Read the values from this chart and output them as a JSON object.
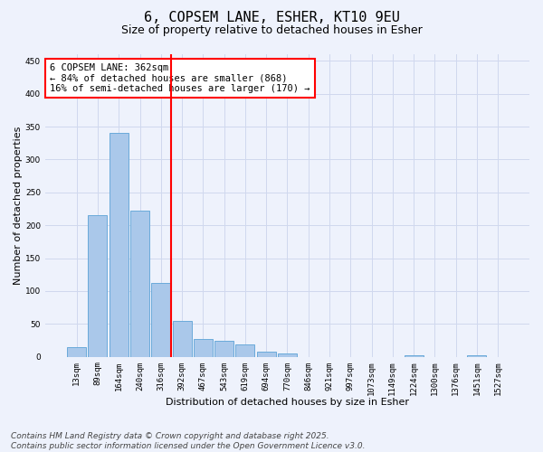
{
  "title": "6, COPSEM LANE, ESHER, KT10 9EU",
  "subtitle": "Size of property relative to detached houses in Esher",
  "xlabel": "Distribution of detached houses by size in Esher",
  "ylabel": "Number of detached properties",
  "categories": [
    "13sqm",
    "89sqm",
    "164sqm",
    "240sqm",
    "316sqm",
    "392sqm",
    "467sqm",
    "543sqm",
    "619sqm",
    "694sqm",
    "770sqm",
    "846sqm",
    "921sqm",
    "997sqm",
    "1073sqm",
    "1149sqm",
    "1224sqm",
    "1300sqm",
    "1376sqm",
    "1451sqm",
    "1527sqm"
  ],
  "values": [
    15,
    216,
    340,
    222,
    112,
    55,
    27,
    25,
    19,
    8,
    5,
    0,
    0,
    0,
    0,
    0,
    2,
    0,
    0,
    2,
    0
  ],
  "bar_color": "#aac8ea",
  "bar_edge_color": "#6aaada",
  "vline_x": 4.5,
  "vline_color": "red",
  "annotation_text": "6 COPSEM LANE: 362sqm\n← 84% of detached houses are smaller (868)\n16% of semi-detached houses are larger (170) →",
  "annotation_box_color": "red",
  "annotation_text_color": "black",
  "ylim": [
    0,
    460
  ],
  "yticks": [
    0,
    50,
    100,
    150,
    200,
    250,
    300,
    350,
    400,
    450
  ],
  "grid_color": "#d0d8ee",
  "background_color": "#eef2fc",
  "axes_bg_color": "#eef2fc",
  "footer": "Contains HM Land Registry data © Crown copyright and database right 2025.\nContains public sector information licensed under the Open Government Licence v3.0.",
  "title_fontsize": 11,
  "subtitle_fontsize": 9,
  "xlabel_fontsize": 8,
  "ylabel_fontsize": 8,
  "tick_fontsize": 6.5,
  "annotation_fontsize": 7.5,
  "footer_fontsize": 6.5
}
